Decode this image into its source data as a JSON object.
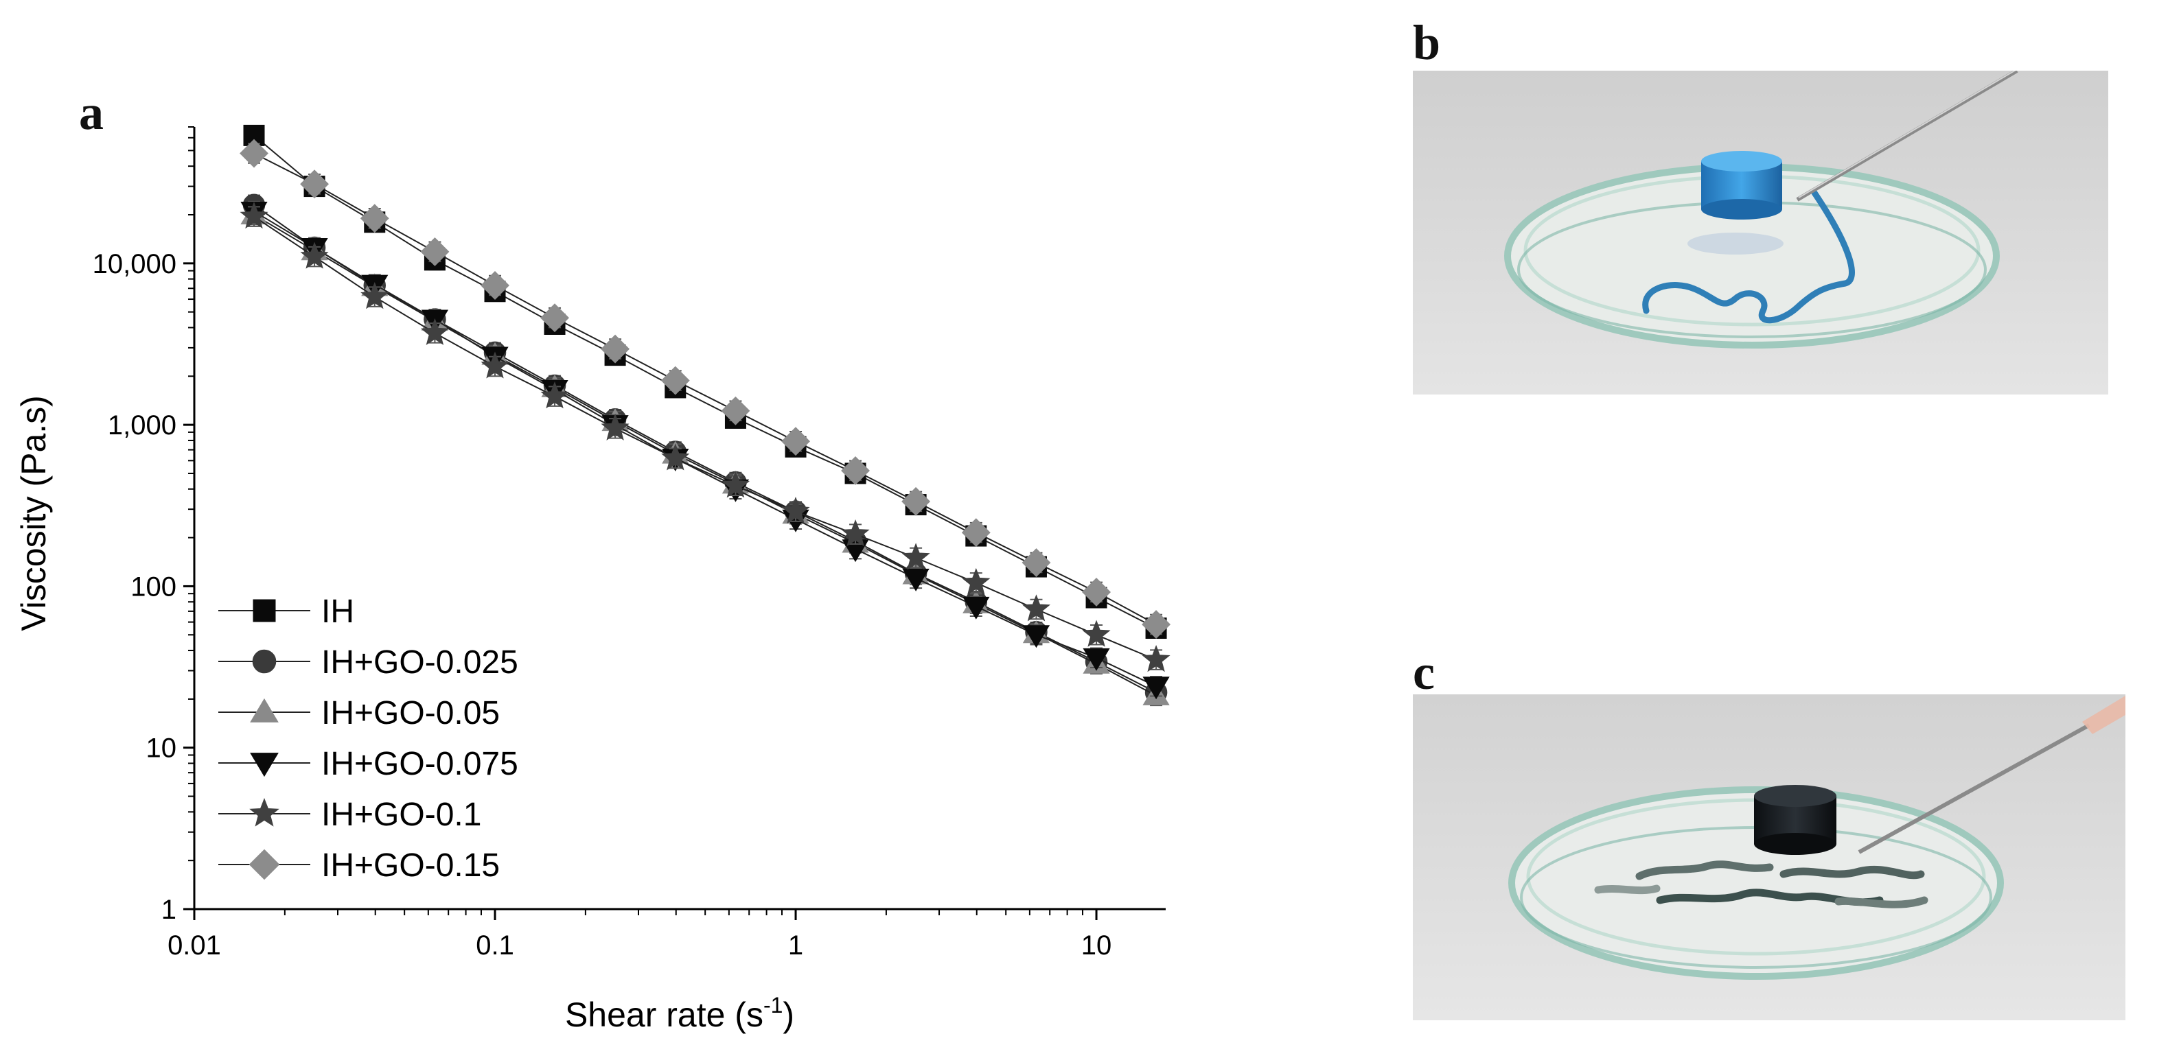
{
  "panels": {
    "a": "a",
    "b": "b",
    "c": "c"
  },
  "chart_data": {
    "type": "line",
    "scale": "log-log",
    "xlabel_main": "Shear rate (s",
    "xlabel_sup": "-1",
    "xlabel_end": ")",
    "ylabel": "Viscosity (Pa.s)",
    "xlim": [
      0.01,
      17
    ],
    "ylim": [
      1,
      70000
    ],
    "x_ticks": [
      {
        "v": 0.01,
        "label": "0.01"
      },
      {
        "v": 0.1,
        "label": "0.1"
      },
      {
        "v": 1,
        "label": "1"
      },
      {
        "v": 10,
        "label": "10"
      }
    ],
    "y_ticks": [
      {
        "v": 1,
        "label": "1"
      },
      {
        "v": 10,
        "label": "10"
      },
      {
        "v": 100,
        "label": "100"
      },
      {
        "v": 1000,
        "label": "1,000"
      },
      {
        "v": 10000,
        "label": "10,000"
      }
    ],
    "x": [
      0.0158,
      0.0251,
      0.0398,
      0.0631,
      0.1,
      0.158,
      0.251,
      0.398,
      0.631,
      1.0,
      1.58,
      2.51,
      3.98,
      6.31,
      10.0,
      15.8
    ],
    "series": [
      {
        "name": "IH",
        "marker": "square",
        "color": "#0a0a0a",
        "values": [
          62000,
          30000,
          18000,
          10500,
          6700,
          4200,
          2700,
          1700,
          1100,
          730,
          500,
          320,
          205,
          132,
          85,
          55
        ]
      },
      {
        "name": "IH+GO-0.025",
        "marker": "circle",
        "color": "#3a3a3a",
        "values": [
          23000,
          12500,
          7300,
          4500,
          2800,
          1750,
          1080,
          680,
          440,
          290,
          190,
          120,
          80,
          52,
          34,
          22
        ]
      },
      {
        "name": "IH+GO-0.05",
        "marker": "triangle-up",
        "color": "#8a8a8a",
        "values": [
          20000,
          12000,
          7200,
          4400,
          2700,
          1700,
          1050,
          660,
          430,
          280,
          185,
          118,
          78,
          51,
          33,
          21
        ]
      },
      {
        "name": "IH+GO-0.075",
        "marker": "triangle-down",
        "color": "#0a0a0a",
        "values": [
          21000,
          12500,
          7400,
          4500,
          2650,
          1650,
          1000,
          620,
          400,
          260,
          170,
          112,
          75,
          50,
          36,
          24
        ]
      },
      {
        "name": "IH+GO-0.1",
        "marker": "star",
        "color": "#404040",
        "values": [
          19500,
          11000,
          6200,
          3700,
          2300,
          1500,
          950,
          620,
          420,
          290,
          210,
          150,
          105,
          72,
          50,
          35
        ]
      },
      {
        "name": "IH+GO-0.15",
        "marker": "diamond",
        "color": "#8c8c8c",
        "values": [
          48000,
          31000,
          19000,
          11800,
          7300,
          4600,
          2950,
          1880,
          1220,
          790,
          520,
          335,
          215,
          140,
          92,
          58
        ]
      }
    ]
  }
}
